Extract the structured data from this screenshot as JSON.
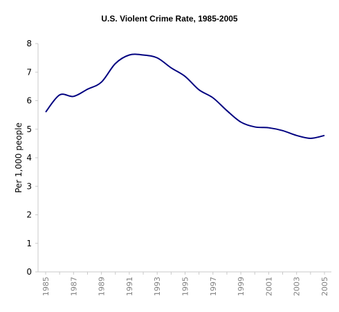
{
  "chart_data": {
    "type": "line",
    "title": "U.S. Violent Crime Rate, 1985-2005",
    "xlabel": "",
    "ylabel": "Per 1,000 people",
    "x": [
      1985,
      1986,
      1987,
      1988,
      1989,
      1990,
      1991,
      1992,
      1993,
      1994,
      1995,
      1996,
      1997,
      1998,
      1999,
      2000,
      2001,
      2002,
      2003,
      2004,
      2005
    ],
    "x_tick_labels": [
      "1985",
      "1987",
      "1989",
      "1991",
      "1993",
      "1995",
      "1997",
      "1999",
      "2001",
      "2003",
      "2005"
    ],
    "y_tick_labels": [
      "0",
      "1",
      "2",
      "3",
      "4",
      "5",
      "6",
      "7",
      "8"
    ],
    "ylim": [
      0,
      8
    ],
    "xlim": [
      1985,
      2005
    ],
    "grid": false,
    "legend": "none",
    "series": [
      {
        "values": [
          5.6,
          6.2,
          6.15,
          6.4,
          6.65,
          7.3,
          7.6,
          7.6,
          7.5,
          7.15,
          6.85,
          6.38,
          6.1,
          5.65,
          5.25,
          5.08,
          5.05,
          4.95,
          4.78,
          4.68,
          4.78
        ],
        "color": "#000080"
      }
    ]
  }
}
